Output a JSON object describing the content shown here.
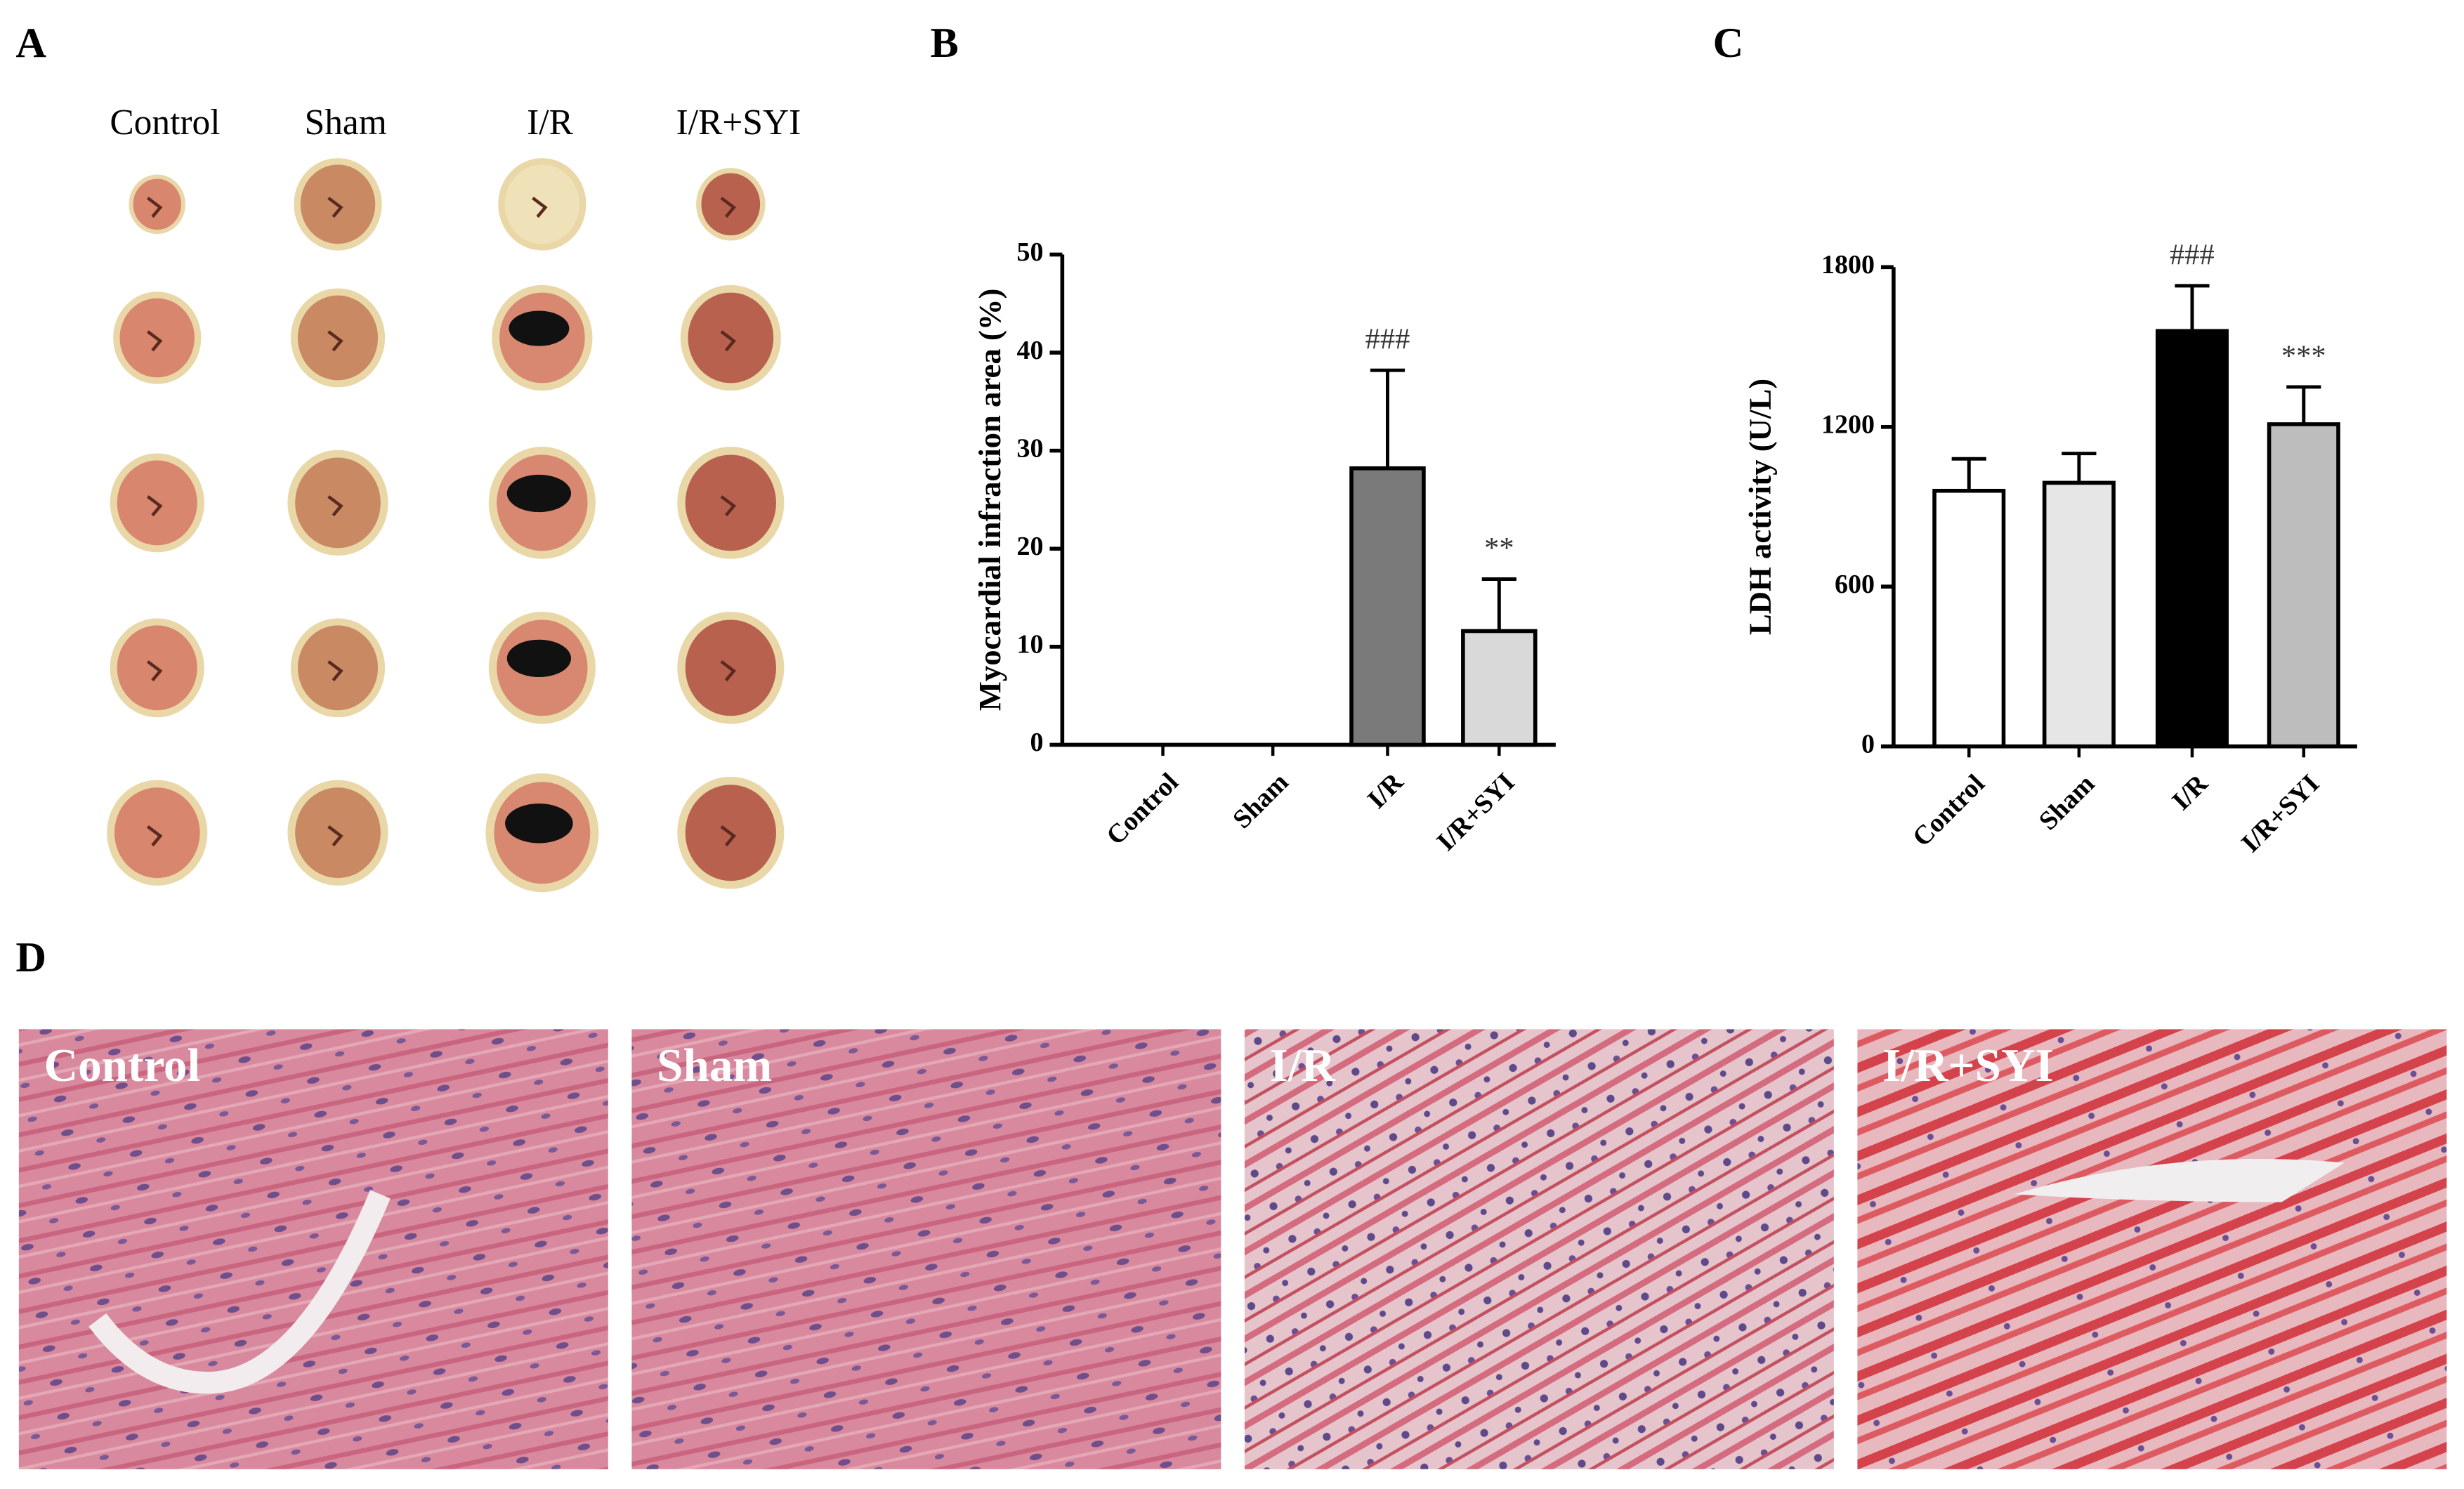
{
  "panels": [
    "A",
    "B",
    "C",
    "D"
  ],
  "panel_a": {
    "columns": [
      "Control",
      "Sham",
      "I/R",
      "I/R+SYI"
    ]
  },
  "panel_d": {
    "images": [
      "Control",
      "Sham",
      "I/R",
      "I/R+SYI"
    ]
  },
  "chart_data": [
    {
      "type": "bar",
      "ylabel": "Myocardial infraction area (%)",
      "categories": [
        "Control",
        "Sham",
        "I/R",
        "I/R+SYI"
      ],
      "values": [
        0,
        0,
        28.2,
        11.6
      ],
      "errors": [
        0,
        0,
        10,
        5.3
      ],
      "colors": [
        "#ffffff",
        "#eeeeee",
        "#7a7a7a",
        "#d9d9d9"
      ],
      "annotations": [
        null,
        null,
        "###",
        "**"
      ],
      "ylim": [
        0,
        50
      ],
      "yticks": [
        0,
        10,
        20,
        30,
        40,
        50
      ]
    },
    {
      "type": "bar",
      "ylabel": "LDH activity (U/L)",
      "categories": [
        "Control",
        "Sham",
        "I/R",
        "I/R+SYI"
      ],
      "values": [
        960,
        990,
        1560,
        1210
      ],
      "errors": [
        120,
        110,
        170,
        140
      ],
      "colors": [
        "#ffffff",
        "#e6e6e6",
        "#000000",
        "#bdbdbd"
      ],
      "annotations": [
        null,
        null,
        "###",
        "***"
      ],
      "ylim": [
        0,
        1800
      ],
      "yticks": [
        0,
        600,
        1200,
        1800
      ]
    }
  ]
}
